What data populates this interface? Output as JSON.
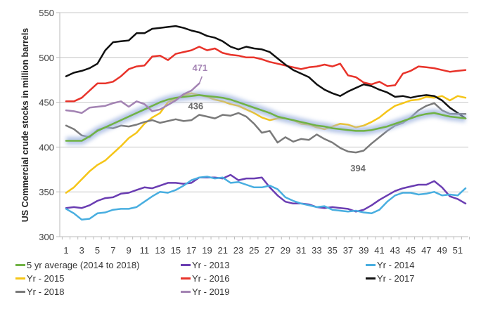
{
  "chart_data": {
    "type": "line",
    "title": "",
    "xlabel": "",
    "ylabel": "US Commercial crude stocks in million barrels",
    "ylim": [
      300,
      550
    ],
    "yticks": [
      300,
      350,
      400,
      450,
      500,
      550
    ],
    "xlim": [
      1,
      52
    ],
    "xtick_labels": [
      "1",
      "3",
      "5",
      "7",
      "9",
      "11",
      "13",
      "15",
      "17",
      "19",
      "21",
      "23",
      "25",
      "27",
      "29",
      "31",
      "33",
      "35",
      "37",
      "39",
      "41",
      "43",
      "45",
      "47",
      "49",
      "51"
    ],
    "grid": "horizontal",
    "legend_position": "bottom",
    "series": [
      {
        "name": "5 yr average (2014 to 2018)",
        "color": "#70B244",
        "glow": true,
        "values": [
          407,
          407,
          407,
          412,
          418,
          422,
          426,
          430,
          434,
          438,
          442,
          446,
          450,
          453,
          455,
          456,
          457,
          458,
          457,
          456,
          455,
          453,
          450,
          447,
          444,
          441,
          438,
          434,
          432,
          430,
          428,
          426,
          424,
          423,
          421,
          420,
          419,
          418,
          418,
          419,
          421,
          423,
          426,
          429,
          432,
          435,
          437,
          438,
          436,
          434,
          433,
          432
        ]
      },
      {
        "name": "Yr - 2013",
        "color": "#6A3DB2",
        "values": [
          332,
          333,
          332,
          335,
          340,
          343,
          344,
          348,
          349,
          352,
          355,
          354,
          357,
          360,
          360,
          359,
          360,
          366,
          366,
          366,
          365,
          369,
          363,
          365,
          365,
          366,
          355,
          346,
          339,
          337,
          337,
          336,
          333,
          332,
          333,
          332,
          331,
          328,
          330,
          335,
          341,
          346,
          351,
          354,
          356,
          358,
          358,
          362,
          355,
          345,
          342,
          337
        ]
      },
      {
        "name": "Yr - 2014",
        "color": "#48AEE0",
        "values": [
          331,
          326,
          319,
          320,
          326,
          327,
          330,
          331,
          331,
          333,
          339,
          345,
          350,
          349,
          352,
          357,
          363,
          366,
          367,
          365,
          366,
          360,
          361,
          358,
          355,
          355,
          357,
          353,
          344,
          340,
          337,
          335,
          333,
          334,
          330,
          329,
          328,
          329,
          327,
          326,
          330,
          339,
          346,
          349,
          349,
          347,
          348,
          350,
          346,
          347,
          346,
          354
        ]
      },
      {
        "name": "Yr - 2015",
        "color": "#F5C518",
        "values": [
          349,
          355,
          364,
          373,
          380,
          385,
          393,
          401,
          410,
          416,
          426,
          433,
          438,
          450,
          454,
          458,
          460,
          458,
          456,
          453,
          451,
          448,
          446,
          442,
          438,
          433,
          430,
          432,
          432,
          430,
          426,
          425,
          422,
          420,
          423,
          426,
          425,
          422,
          424,
          428,
          433,
          440,
          446,
          449,
          452,
          453,
          456,
          455,
          457,
          452,
          457,
          455
        ]
      },
      {
        "name": "Yr - 2016",
        "color": "#E8332A",
        "values": [
          451,
          451,
          455,
          463,
          471,
          471,
          473,
          479,
          487,
          490,
          491,
          501,
          502,
          497,
          504,
          506,
          508,
          512,
          508,
          510,
          505,
          503,
          502,
          500,
          500,
          498,
          495,
          493,
          491,
          489,
          487,
          489,
          490,
          492,
          490,
          493,
          480,
          478,
          472,
          470,
          473,
          468,
          469,
          482,
          485,
          490,
          489,
          488,
          486,
          484,
          485,
          486
        ]
      },
      {
        "name": "Yr - 2017",
        "color": "#111111",
        "values": [
          479,
          483,
          485,
          488,
          493,
          508,
          517,
          518,
          519,
          527,
          527,
          532,
          533,
          534,
          535,
          533,
          530,
          528,
          524,
          522,
          518,
          512,
          509,
          512,
          510,
          509,
          506,
          499,
          492,
          486,
          482,
          478,
          470,
          464,
          460,
          457,
          462,
          466,
          470,
          468,
          464,
          461,
          456,
          457,
          455,
          457,
          458,
          457,
          452,
          444,
          438,
          432
        ]
      },
      {
        "name": "Yr - 2018",
        "color": "#7A7A7A",
        "values": [
          424,
          420,
          413,
          411,
          419,
          422,
          421,
          424,
          423,
          425,
          428,
          430,
          427,
          429,
          431,
          429,
          430,
          436,
          434,
          432,
          436,
          435,
          438,
          434,
          426,
          416,
          418,
          405,
          411,
          406,
          409,
          408,
          414,
          409,
          405,
          399,
          395,
          394,
          396,
          404,
          411,
          418,
          424,
          427,
          433,
          441,
          446,
          449,
          441,
          437,
          437,
          437
        ]
      },
      {
        "name": "Yr - 2019",
        "color": "#A383B3",
        "values": [
          441,
          440,
          438,
          444,
          445,
          446,
          449,
          451,
          445,
          451,
          448,
          440,
          442,
          447,
          452,
          459,
          463,
          471
        ]
      }
    ],
    "annotations": [
      {
        "text": "471",
        "series": "Yr - 2019",
        "x": 18,
        "y": 471,
        "color": "#A383B3"
      },
      {
        "text": "436",
        "series": "Yr - 2018",
        "x": 18,
        "y": 436,
        "color": "#6D6D6D"
      },
      {
        "text": "394",
        "series": "Yr - 2018",
        "x": 38,
        "y": 394,
        "color": "#6D6D6D"
      }
    ]
  }
}
